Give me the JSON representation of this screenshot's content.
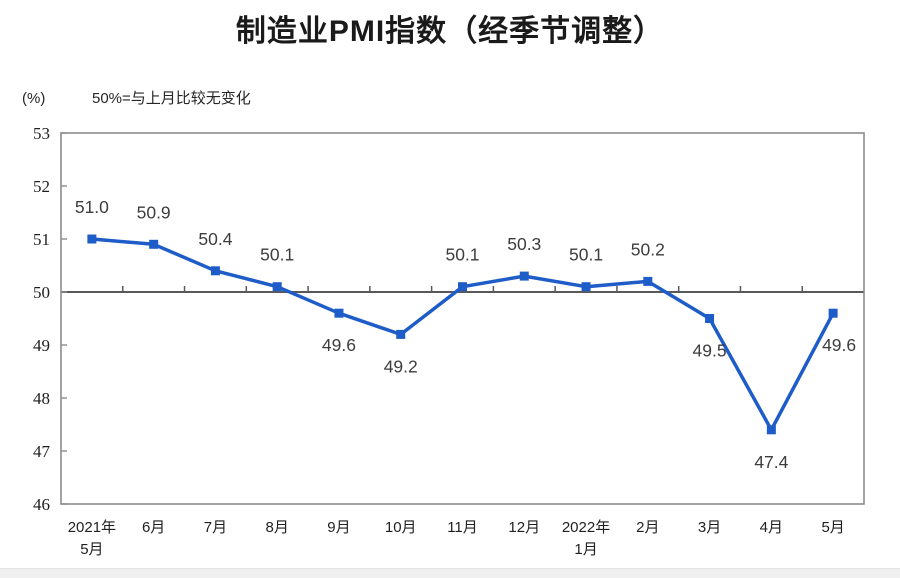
{
  "page": {
    "title": "制造业PMI指数（经季节调整）",
    "unit_label": "(%)",
    "reference_note": "50%=与上月比较无变化"
  },
  "chart_data": {
    "type": "line",
    "title": "制造业PMI指数（经季节调整）",
    "ylabel": "(%)",
    "annotation": "50%=与上月比较无变化",
    "categories": [
      [
        "2021年",
        "5月"
      ],
      [
        "6月"
      ],
      [
        "7月"
      ],
      [
        "8月"
      ],
      [
        "9月"
      ],
      [
        "10月"
      ],
      [
        "11月"
      ],
      [
        "12月"
      ],
      [
        "2022年",
        "1月"
      ],
      [
        "2月"
      ],
      [
        "3月"
      ],
      [
        "4月"
      ],
      [
        "5月"
      ]
    ],
    "series": [
      {
        "name": "制造业PMI",
        "values": [
          51.0,
          50.9,
          50.4,
          50.1,
          49.6,
          49.2,
          50.1,
          50.3,
          50.1,
          50.2,
          49.5,
          47.4,
          49.6
        ],
        "labels": [
          "51.0",
          "50.9",
          "50.4",
          "50.1",
          "49.6",
          "49.2",
          "50.1",
          "50.3",
          "50.1",
          "50.2",
          "49.5",
          "47.4",
          "49.6"
        ],
        "label_positions": [
          "above",
          "above",
          "above",
          "above",
          "below",
          "below",
          "above",
          "above",
          "above",
          "above",
          "below",
          "below",
          "below"
        ]
      }
    ],
    "ylim": [
      46,
      53
    ],
    "yticks": [
      46,
      47,
      48,
      49,
      50,
      51,
      52,
      53
    ],
    "reference_line": 50,
    "grid": false,
    "legend": "none",
    "colors": {
      "line": "#1e5cc8",
      "marker": "#1e5cc8",
      "data_label": "#3d3d3d",
      "axis_border": "#8c8c8c",
      "reference_line": "#595959",
      "axis_text": "#1f1f1f"
    }
  }
}
